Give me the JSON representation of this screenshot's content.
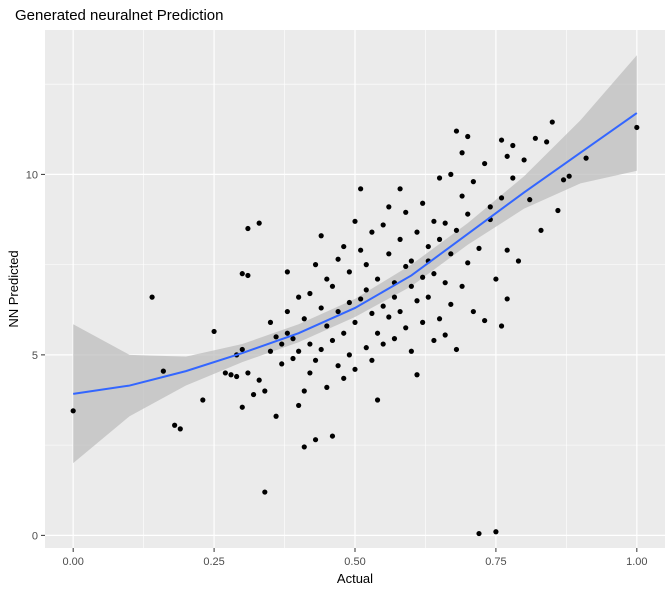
{
  "chart_data": {
    "type": "scatter",
    "title": "Generated neuralnet Prediction",
    "xlabel": "Actual",
    "ylabel": "NN Predicted",
    "xlim": [
      -0.05,
      1.05
    ],
    "ylim": [
      -0.35,
      14.0
    ],
    "xticks": [
      0.0,
      0.25,
      0.5,
      0.75,
      1.0
    ],
    "xtick_labels": [
      "0.00",
      "0.25",
      "0.50",
      "0.75",
      "1.00"
    ],
    "yticks": [
      0,
      5,
      10
    ],
    "ytick_labels": [
      "0",
      "5",
      "10"
    ],
    "grid": true,
    "colors": {
      "panel": "#ebebeb",
      "grid": "#ffffff",
      "point": "#000000",
      "smooth": "#3366ff",
      "band": "#bebebe"
    },
    "points": [
      [
        0.0,
        3.45
      ],
      [
        0.14,
        6.6
      ],
      [
        0.16,
        4.55
      ],
      [
        0.18,
        3.05
      ],
      [
        0.19,
        2.95
      ],
      [
        0.23,
        3.75
      ],
      [
        0.25,
        5.65
      ],
      [
        0.27,
        4.5
      ],
      [
        0.28,
        4.45
      ],
      [
        0.29,
        5.0
      ],
      [
        0.29,
        4.4
      ],
      [
        0.3,
        3.55
      ],
      [
        0.3,
        5.15
      ],
      [
        0.3,
        7.25
      ],
      [
        0.31,
        8.5
      ],
      [
        0.31,
        4.5
      ],
      [
        0.31,
        7.2
      ],
      [
        0.32,
        3.9
      ],
      [
        0.33,
        8.65
      ],
      [
        0.33,
        4.3
      ],
      [
        0.34,
        4.0
      ],
      [
        0.34,
        1.2
      ],
      [
        0.35,
        5.1
      ],
      [
        0.35,
        5.9
      ],
      [
        0.36,
        3.3
      ],
      [
        0.36,
        5.5
      ],
      [
        0.37,
        4.75
      ],
      [
        0.37,
        5.3
      ],
      [
        0.38,
        6.2
      ],
      [
        0.38,
        7.3
      ],
      [
        0.38,
        5.6
      ],
      [
        0.39,
        5.45
      ],
      [
        0.39,
        4.9
      ],
      [
        0.4,
        3.6
      ],
      [
        0.4,
        6.6
      ],
      [
        0.4,
        5.1
      ],
      [
        0.41,
        2.45
      ],
      [
        0.41,
        4.0
      ],
      [
        0.41,
        6.0
      ],
      [
        0.42,
        4.5
      ],
      [
        0.42,
        5.3
      ],
      [
        0.42,
        6.7
      ],
      [
        0.43,
        2.65
      ],
      [
        0.43,
        7.5
      ],
      [
        0.43,
        4.85
      ],
      [
        0.44,
        8.3
      ],
      [
        0.44,
        6.3
      ],
      [
        0.44,
        5.15
      ],
      [
        0.45,
        4.1
      ],
      [
        0.45,
        7.1
      ],
      [
        0.45,
        5.8
      ],
      [
        0.46,
        2.75
      ],
      [
        0.46,
        6.9
      ],
      [
        0.46,
        5.4
      ],
      [
        0.47,
        7.65
      ],
      [
        0.47,
        4.7
      ],
      [
        0.47,
        6.2
      ],
      [
        0.48,
        5.6
      ],
      [
        0.48,
        8.0
      ],
      [
        0.48,
        4.35
      ],
      [
        0.49,
        6.45
      ],
      [
        0.49,
        7.3
      ],
      [
        0.49,
        5.0
      ],
      [
        0.5,
        5.9
      ],
      [
        0.5,
        8.7
      ],
      [
        0.5,
        4.6
      ],
      [
        0.51,
        6.55
      ],
      [
        0.51,
        9.6
      ],
      [
        0.51,
        7.9
      ],
      [
        0.52,
        5.2
      ],
      [
        0.52,
        6.8
      ],
      [
        0.52,
        7.5
      ],
      [
        0.53,
        4.85
      ],
      [
        0.53,
        6.15
      ],
      [
        0.53,
        8.4
      ],
      [
        0.54,
        5.6
      ],
      [
        0.54,
        3.75
      ],
      [
        0.54,
        7.1
      ],
      [
        0.55,
        6.35
      ],
      [
        0.55,
        8.6
      ],
      [
        0.55,
        5.3
      ],
      [
        0.56,
        7.8
      ],
      [
        0.56,
        6.05
      ],
      [
        0.56,
        9.1
      ],
      [
        0.57,
        5.45
      ],
      [
        0.57,
        7.0
      ],
      [
        0.57,
        6.6
      ],
      [
        0.58,
        8.2
      ],
      [
        0.58,
        6.2
      ],
      [
        0.58,
        9.6
      ],
      [
        0.59,
        7.45
      ],
      [
        0.59,
        5.75
      ],
      [
        0.59,
        8.95
      ],
      [
        0.6,
        6.9
      ],
      [
        0.6,
        7.6
      ],
      [
        0.6,
        5.1
      ],
      [
        0.61,
        8.4
      ],
      [
        0.61,
        4.45
      ],
      [
        0.61,
        6.5
      ],
      [
        0.62,
        7.15
      ],
      [
        0.62,
        9.2
      ],
      [
        0.62,
        5.9
      ],
      [
        0.63,
        8.0
      ],
      [
        0.63,
        6.6
      ],
      [
        0.63,
        7.6
      ],
      [
        0.64,
        8.7
      ],
      [
        0.64,
        5.4
      ],
      [
        0.64,
        7.25
      ],
      [
        0.65,
        6.0
      ],
      [
        0.65,
        9.9
      ],
      [
        0.65,
        8.2
      ],
      [
        0.66,
        7.0
      ],
      [
        0.66,
        5.55
      ],
      [
        0.66,
        8.65
      ],
      [
        0.67,
        6.4
      ],
      [
        0.67,
        10.0
      ],
      [
        0.67,
        7.8
      ],
      [
        0.68,
        11.2
      ],
      [
        0.68,
        8.45
      ],
      [
        0.68,
        5.15
      ],
      [
        0.69,
        9.4
      ],
      [
        0.69,
        6.9
      ],
      [
        0.69,
        10.6
      ],
      [
        0.7,
        7.55
      ],
      [
        0.7,
        11.05
      ],
      [
        0.7,
        8.9
      ],
      [
        0.71,
        6.2
      ],
      [
        0.71,
        9.8
      ],
      [
        0.72,
        0.05
      ],
      [
        0.72,
        7.95
      ],
      [
        0.73,
        10.3
      ],
      [
        0.73,
        5.95
      ],
      [
        0.74,
        8.75
      ],
      [
        0.74,
        9.1
      ],
      [
        0.75,
        0.1
      ],
      [
        0.75,
        7.1
      ],
      [
        0.76,
        10.95
      ],
      [
        0.76,
        5.8
      ],
      [
        0.76,
        9.35
      ],
      [
        0.77,
        10.5
      ],
      [
        0.77,
        6.55
      ],
      [
        0.77,
        7.9
      ],
      [
        0.78,
        9.9
      ],
      [
        0.78,
        10.8
      ],
      [
        0.79,
        7.6
      ],
      [
        0.8,
        10.4
      ],
      [
        0.81,
        9.3
      ],
      [
        0.82,
        11.0
      ],
      [
        0.83,
        8.45
      ],
      [
        0.84,
        10.9
      ],
      [
        0.85,
        11.45
      ],
      [
        0.86,
        9.0
      ],
      [
        0.87,
        9.85
      ],
      [
        0.88,
        9.95
      ],
      [
        0.91,
        10.45
      ],
      [
        1.0,
        11.3
      ]
    ],
    "smooth_line": [
      [
        0.0,
        3.92
      ],
      [
        0.1,
        4.15
      ],
      [
        0.2,
        4.55
      ],
      [
        0.3,
        5.05
      ],
      [
        0.4,
        5.6
      ],
      [
        0.5,
        6.3
      ],
      [
        0.6,
        7.2
      ],
      [
        0.7,
        8.35
      ],
      [
        0.8,
        9.5
      ],
      [
        0.9,
        10.6
      ],
      [
        1.0,
        11.7
      ]
    ],
    "band_upper": [
      [
        0.0,
        5.85
      ],
      [
        0.1,
        5.0
      ],
      [
        0.2,
        4.95
      ],
      [
        0.3,
        5.3
      ],
      [
        0.4,
        5.85
      ],
      [
        0.5,
        6.55
      ],
      [
        0.6,
        7.5
      ],
      [
        0.7,
        8.65
      ],
      [
        0.8,
        9.95
      ],
      [
        0.9,
        11.5
      ],
      [
        1.0,
        13.3
      ]
    ],
    "band_lower": [
      [
        0.0,
        2.0
      ],
      [
        0.1,
        3.3
      ],
      [
        0.2,
        4.15
      ],
      [
        0.3,
        4.8
      ],
      [
        0.4,
        5.35
      ],
      [
        0.5,
        6.05
      ],
      [
        0.6,
        6.9
      ],
      [
        0.7,
        8.05
      ],
      [
        0.8,
        9.05
      ],
      [
        0.9,
        9.75
      ],
      [
        1.0,
        10.1
      ]
    ]
  }
}
